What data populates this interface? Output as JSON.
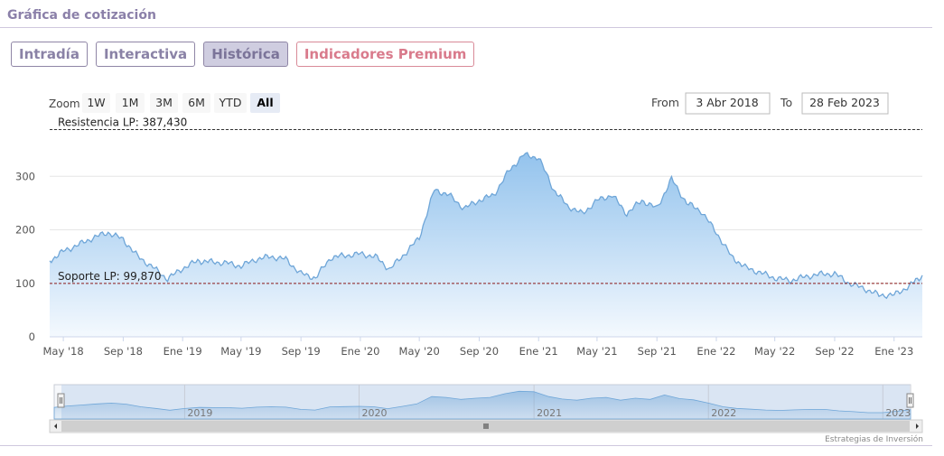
{
  "header": {
    "title": "Gráfica de cotización"
  },
  "tabs": [
    {
      "label": "Intradía",
      "name": "tab-intradia"
    },
    {
      "label": "Interactiva",
      "name": "tab-interactiva"
    },
    {
      "label": "Histórica",
      "name": "tab-historica",
      "active": true
    },
    {
      "label": "Indicadores Premium",
      "name": "tab-indicadores-premium"
    }
  ],
  "range_selector": {
    "zoom_label": "Zoom",
    "buttons": [
      "1W",
      "1M",
      "3M",
      "6M",
      "YTD",
      "All"
    ],
    "selected": "All",
    "from_label": "From",
    "from_value": "3 Abr 2018",
    "to_label": "To",
    "to_value": "28 Feb 2023"
  },
  "credits": "Estrategias de Inversión",
  "colors": {
    "line": "#6fa6d8",
    "fill_top": "#8ec0ec",
    "fill_bottom": "#f4f9fe",
    "resistance": "#333333",
    "support": "#8b1a1a"
  },
  "chart_data": {
    "type": "area",
    "x_start": "2018-04-03",
    "x_end": "2023-02-28",
    "y_ticks": [
      0,
      100,
      200,
      300
    ],
    "x_tick_labels": [
      "May '18",
      "Sep '18",
      "Ene '19",
      "May '19",
      "Sep '19",
      "Ene '20",
      "May '20",
      "Sep '20",
      "Ene '21",
      "May '21",
      "Sep '21",
      "Ene '22",
      "May '22",
      "Sep '22",
      "Ene '23"
    ],
    "navigator_labels": [
      "2019",
      "2020",
      "2021",
      "2022",
      "2023"
    ],
    "resistance": {
      "label": "Resistencia LP: 387,430",
      "value": 387.43
    },
    "support": {
      "label": "Soporte LP: 99,870",
      "value": 99.87
    },
    "series": [
      {
        "x": [
          "2018-04-03",
          "2018-05-01",
          "2018-06-01",
          "2018-07-01",
          "2018-08-01",
          "2018-09-01",
          "2018-10-01",
          "2018-11-01",
          "2018-12-01",
          "2019-01-01",
          "2019-02-01",
          "2019-03-01",
          "2019-04-01",
          "2019-05-01",
          "2019-06-01",
          "2019-07-01",
          "2019-08-01",
          "2019-09-01",
          "2019-10-01",
          "2019-11-01",
          "2019-12-01",
          "2020-01-01",
          "2020-02-01",
          "2020-03-01",
          "2020-04-01",
          "2020-05-01",
          "2020-06-01",
          "2020-07-01",
          "2020-08-01",
          "2020-09-01",
          "2020-10-01",
          "2020-11-01",
          "2020-12-01",
          "2021-01-01",
          "2021-02-01",
          "2021-03-01",
          "2021-04-01",
          "2021-05-01",
          "2021-06-01",
          "2021-07-01",
          "2021-08-01",
          "2021-09-01",
          "2021-10-01",
          "2021-11-01",
          "2021-12-01",
          "2022-01-01",
          "2022-02-01",
          "2022-03-01",
          "2022-04-01",
          "2022-05-01",
          "2022-06-01",
          "2022-07-01",
          "2022-08-01",
          "2022-09-01",
          "2022-10-01",
          "2022-11-01",
          "2022-12-01",
          "2023-01-01",
          "2023-02-01",
          "2023-02-28"
        ],
        "values": [
          142,
          160,
          172,
          185,
          195,
          182,
          150,
          130,
          108,
          128,
          142,
          140,
          138,
          132,
          145,
          150,
          145,
          118,
          110,
          148,
          152,
          155,
          150,
          126,
          155,
          185,
          275,
          265,
          240,
          255,
          265,
          310,
          340,
          335,
          275,
          245,
          230,
          255,
          265,
          230,
          255,
          240,
          295,
          250,
          235,
          195,
          150,
          130,
          120,
          110,
          105,
          112,
          117,
          118,
          100,
          90,
          78,
          78,
          95,
          115
        ]
      }
    ]
  }
}
